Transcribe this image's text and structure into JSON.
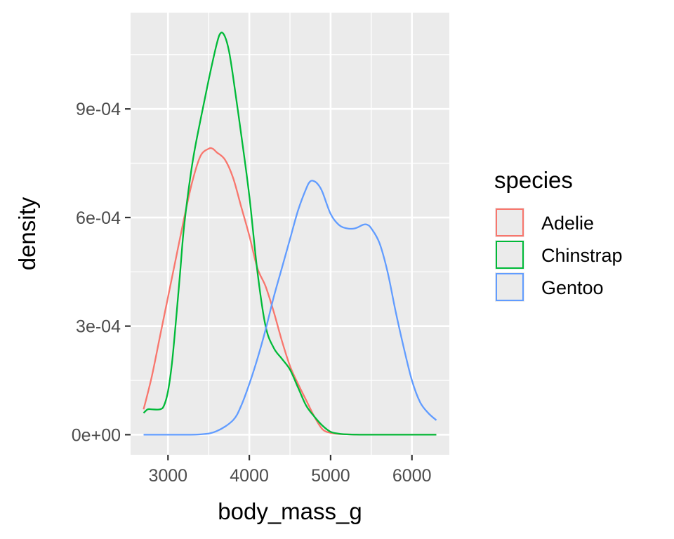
{
  "chart_data": {
    "type": "density",
    "title": "",
    "xlabel": "body_mass_g",
    "ylabel": "density",
    "xlim": [
      2540,
      6460
    ],
    "ylim": [
      -5.55e-05,
      0.001166
    ],
    "x_ticks": [
      3000,
      4000,
      5000,
      6000
    ],
    "x_tick_labels": [
      "3000",
      "4000",
      "5000",
      "6000"
    ],
    "y_ticks": [
      0,
      0.0003,
      0.0006,
      0.0009
    ],
    "y_tick_labels": [
      "0e+00",
      "3e-04",
      "6e-04",
      "9e-04"
    ],
    "grid": true,
    "legend": {
      "title": "species",
      "position": "right"
    },
    "series": [
      {
        "name": "Adelie",
        "color": "#F8766D",
        "x": [
          2700,
          2800,
          2900,
          3000,
          3100,
          3200,
          3300,
          3400,
          3500,
          3550,
          3600,
          3700,
          3800,
          3900,
          4000,
          4100,
          4200,
          4300,
          4400,
          4500,
          4600,
          4700,
          4800,
          4900,
          5000,
          5100,
          5200,
          5400,
          5600,
          5800,
          6000,
          6300
        ],
        "y": [
          7e-05,
          0.00016,
          0.00027,
          0.00038,
          0.00049,
          0.0006,
          0.0007,
          0.00077,
          0.00079,
          0.00079,
          0.00078,
          0.00076,
          0.00071,
          0.00063,
          0.00055,
          0.00046,
          0.00041,
          0.00034,
          0.00026,
          0.00019,
          0.00014,
          9.5e-05,
          5e-05,
          1.5e-05,
          5e-06,
          2e-06,
          1e-06,
          0,
          0,
          0,
          0,
          0
        ]
      },
      {
        "name": "Chinstrap",
        "color": "#00BA38",
        "x": [
          2700,
          2750,
          2800,
          2900,
          2950,
          3000,
          3050,
          3100,
          3150,
          3200,
          3300,
          3400,
          3500,
          3600,
          3650,
          3700,
          3750,
          3800,
          3900,
          4000,
          4100,
          4200,
          4300,
          4400,
          4500,
          4600,
          4700,
          4800,
          4900,
          5000,
          5100,
          5200,
          5400,
          5600,
          5800,
          6000,
          6300
        ],
        "y": [
          6e-05,
          7e-05,
          7e-05,
          7e-05,
          8e-05,
          0.00012,
          0.0002,
          0.00032,
          0.00045,
          0.00058,
          0.00075,
          0.00087,
          0.00098,
          0.00108,
          0.00111,
          0.0011,
          0.00106,
          0.00099,
          0.00083,
          0.00066,
          0.00045,
          0.0003,
          0.00024,
          0.00021,
          0.00018,
          0.00013,
          8e-05,
          5e-05,
          2.5e-05,
          8e-06,
          3e-06,
          1e-06,
          0,
          0,
          0,
          0,
          0
        ]
      },
      {
        "name": "Gentoo",
        "color": "#619CFF",
        "x": [
          2700,
          3000,
          3400,
          3600,
          3800,
          3900,
          4000,
          4100,
          4200,
          4300,
          4400,
          4500,
          4600,
          4700,
          4750,
          4800,
          4850,
          4900,
          5000,
          5100,
          5200,
          5300,
          5400,
          5450,
          5500,
          5600,
          5700,
          5800,
          5900,
          6000,
          6100,
          6200,
          6300
        ],
        "y": [
          0,
          0,
          1e-06,
          1e-05,
          4e-05,
          8e-05,
          0.00014,
          0.00021,
          0.00029,
          0.00038,
          0.00046,
          0.00054,
          0.00062,
          0.00068,
          0.0007,
          0.0007,
          0.00069,
          0.00067,
          0.00061,
          0.00058,
          0.00057,
          0.00057,
          0.00058,
          0.00058,
          0.00057,
          0.00053,
          0.00045,
          0.00034,
          0.00024,
          0.00015,
          9e-05,
          6e-05,
          4e-05
        ]
      }
    ]
  }
}
